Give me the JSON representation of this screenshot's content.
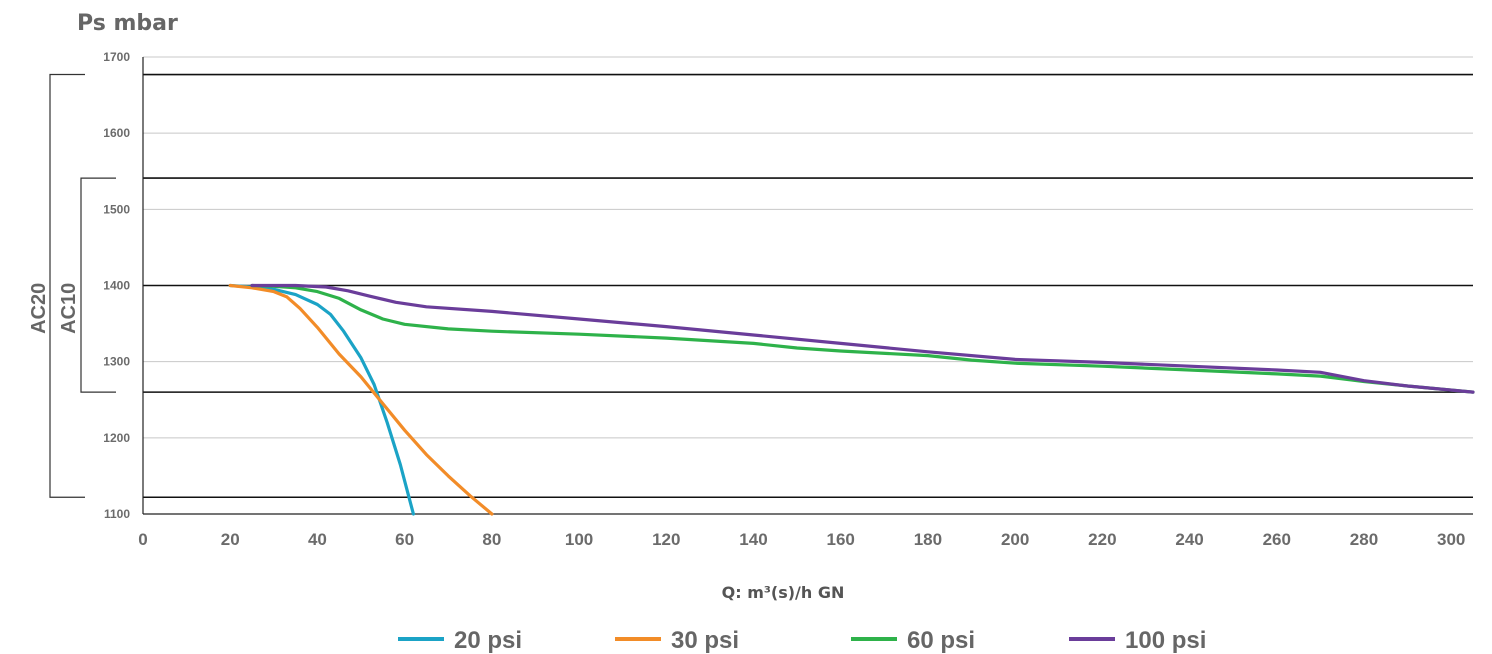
{
  "chart_data": {
    "type": "line",
    "title": "",
    "ylabel": "Ps mbar",
    "xlabel": "Q: m³(s)/h GN",
    "xlim": [
      0,
      305
    ],
    "ylim": [
      1100,
      1700
    ],
    "x_ticks": [
      0,
      20,
      40,
      60,
      80,
      100,
      120,
      140,
      160,
      180,
      200,
      220,
      240,
      260,
      280,
      300
    ],
    "y_ticks": [
      1100,
      1200,
      1300,
      1400,
      1500,
      1600,
      1700
    ],
    "grid": "horizontal",
    "legend_position": "bottom",
    "series": [
      {
        "name": "20 psi",
        "color": "#1ba3c6",
        "points": [
          [
            20,
            1400
          ],
          [
            25,
            1398
          ],
          [
            30,
            1395
          ],
          [
            35,
            1388
          ],
          [
            40,
            1375
          ],
          [
            43,
            1362
          ],
          [
            46,
            1340
          ],
          [
            50,
            1305
          ],
          [
            53,
            1270
          ],
          [
            56,
            1220
          ],
          [
            59,
            1165
          ],
          [
            62,
            1100
          ]
        ]
      },
      {
        "name": "30 psi",
        "color": "#f28c28",
        "points": [
          [
            20,
            1400
          ],
          [
            25,
            1397
          ],
          [
            30,
            1392
          ],
          [
            33,
            1385
          ],
          [
            36,
            1370
          ],
          [
            40,
            1345
          ],
          [
            45,
            1310
          ],
          [
            50,
            1280
          ],
          [
            55,
            1245
          ],
          [
            60,
            1210
          ],
          [
            65,
            1178
          ],
          [
            70,
            1150
          ],
          [
            75,
            1124
          ],
          [
            80,
            1100
          ]
        ]
      },
      {
        "name": "60 psi",
        "color": "#2eb24a",
        "points": [
          [
            25,
            1400
          ],
          [
            30,
            1399
          ],
          [
            35,
            1397
          ],
          [
            40,
            1392
          ],
          [
            45,
            1383
          ],
          [
            50,
            1368
          ],
          [
            55,
            1356
          ],
          [
            60,
            1349
          ],
          [
            70,
            1343
          ],
          [
            80,
            1340
          ],
          [
            100,
            1336
          ],
          [
            120,
            1331
          ],
          [
            140,
            1324
          ],
          [
            150,
            1318
          ],
          [
            160,
            1314
          ],
          [
            180,
            1308
          ],
          [
            190,
            1302
          ],
          [
            200,
            1298
          ],
          [
            220,
            1294
          ],
          [
            240,
            1289
          ],
          [
            260,
            1284
          ],
          [
            270,
            1281
          ],
          [
            280,
            1274
          ],
          [
            290,
            1268
          ],
          [
            305,
            1260
          ]
        ]
      },
      {
        "name": "100 psi",
        "color": "#6a3d9a",
        "points": [
          [
            25,
            1400
          ],
          [
            35,
            1400
          ],
          [
            42,
            1398
          ],
          [
            47,
            1393
          ],
          [
            52,
            1386
          ],
          [
            58,
            1378
          ],
          [
            65,
            1372
          ],
          [
            80,
            1366
          ],
          [
            100,
            1356
          ],
          [
            120,
            1346
          ],
          [
            140,
            1335
          ],
          [
            160,
            1324
          ],
          [
            180,
            1313
          ],
          [
            200,
            1303
          ],
          [
            220,
            1299
          ],
          [
            240,
            1294
          ],
          [
            260,
            1289
          ],
          [
            270,
            1286
          ],
          [
            280,
            1275
          ],
          [
            290,
            1268
          ],
          [
            305,
            1260
          ]
        ]
      }
    ],
    "reference_lines": [
      1677,
      1541,
      1400,
      1260,
      1122
    ],
    "brackets": [
      {
        "label": "AC20",
        "from": 1677,
        "to": 1122
      },
      {
        "label": "AC10",
        "from": 1541,
        "to": 1260
      }
    ]
  }
}
